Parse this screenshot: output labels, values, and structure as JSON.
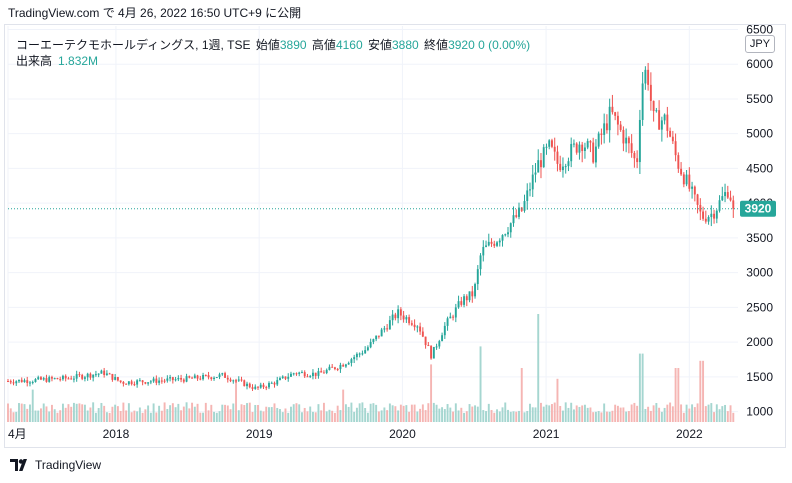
{
  "header": {
    "text": "TradingView.com で 4月 26, 2022 16:50 UTC+9 に公開"
  },
  "legend": {
    "symbol": "コーエーテクモホールディングス, 1週, TSE",
    "open_label": "始値",
    "open": "3890",
    "high_label": "高値",
    "high": "4160",
    "low_label": "安値",
    "low": "3880",
    "close_label": "終値",
    "close": "3920",
    "change": "0 (0.00%)",
    "volume_label": "出来高",
    "volume": "1.832M"
  },
  "currency": "JPY",
  "last_price_label": "3920",
  "footer": {
    "brand": "TradingView",
    "logo_icon": "tradingview-logo-icon"
  },
  "colors": {
    "up": "#26a69a",
    "down": "#ef5350",
    "up_volume": "#a5d6d0",
    "down_volume": "#f5b5b3",
    "grid": "#f0f3fa"
  },
  "chart_data": {
    "type": "candlestick",
    "interval": "1W",
    "y_ticks": [
      1000,
      1500,
      2000,
      2500,
      3000,
      3500,
      4000,
      4500,
      5000,
      5500,
      6000,
      6500
    ],
    "y_tick_labels": [
      "1000",
      "1500",
      "2000",
      "2500",
      "3000",
      "3500",
      "4000",
      "4500",
      "5000",
      "5500",
      "6000",
      "6500"
    ],
    "ylim": [
      850,
      6550
    ],
    "x_tick_labels": [
      "4月",
      "2018",
      "2019",
      "2020",
      "2021",
      "2022"
    ],
    "x_tick_dates": [
      "2017-04-01",
      "2018-01-01",
      "2019-01-01",
      "2020-01-01",
      "2021-01-01",
      "2022-01-01"
    ],
    "x_range": [
      "2017-04-01",
      "2022-05-05"
    ],
    "last_close": 3920,
    "price_path": [
      [
        "2017-04-01",
        1440
      ],
      [
        "2017-06-01",
        1450
      ],
      [
        "2017-09-01",
        1480
      ],
      [
        "2017-12-01",
        1560
      ],
      [
        "2018-01-15",
        1420
      ],
      [
        "2018-04-01",
        1440
      ],
      [
        "2018-07-01",
        1470
      ],
      [
        "2018-10-01",
        1520
      ],
      [
        "2018-12-25",
        1330
      ],
      [
        "2019-02-15",
        1430
      ],
      [
        "2019-04-01",
        1560
      ],
      [
        "2019-06-01",
        1540
      ],
      [
        "2019-08-01",
        1680
      ],
      [
        "2019-10-01",
        1900
      ],
      [
        "2019-12-20",
        2420
      ],
      [
        "2020-02-10",
        2250
      ],
      [
        "2020-03-15",
        1800
      ],
      [
        "2020-04-15",
        2200
      ],
      [
        "2020-06-01",
        2600
      ],
      [
        "2020-07-01",
        2700
      ],
      [
        "2020-07-20",
        3300
      ],
      [
        "2020-09-01",
        3500
      ],
      [
        "2020-11-01",
        3900
      ],
      [
        "2020-12-10",
        4550
      ],
      [
        "2021-01-10",
        4800
      ],
      [
        "2021-02-01",
        4550
      ],
      [
        "2021-04-01",
        4900
      ],
      [
        "2021-05-01",
        4700
      ],
      [
        "2021-06-15",
        5300
      ],
      [
        "2021-08-01",
        4800
      ],
      [
        "2021-08-20",
        4550
      ],
      [
        "2021-09-01",
        5700
      ],
      [
        "2021-09-15",
        5950
      ],
      [
        "2021-10-01",
        5200
      ],
      [
        "2021-11-01",
        5200
      ],
      [
        "2021-12-01",
        4600
      ],
      [
        "2022-01-10",
        4100
      ],
      [
        "2022-02-01",
        3800
      ],
      [
        "2022-03-01",
        3850
      ],
      [
        "2022-04-10",
        4200
      ],
      [
        "2022-04-26",
        3920
      ]
    ],
    "volume_spikes": [
      [
        "2017-06-01",
        0.9
      ],
      [
        "2018-11-01",
        1.2
      ],
      [
        "2019-08-01",
        0.9
      ],
      [
        "2020-03-15",
        1.6
      ],
      [
        "2020-07-20",
        2.1
      ],
      [
        "2020-11-01",
        1.5
      ],
      [
        "2020-12-10",
        3.0
      ],
      [
        "2021-02-01",
        1.2
      ],
      [
        "2021-09-01",
        1.9
      ],
      [
        "2021-12-01",
        1.5
      ],
      [
        "2022-02-01",
        1.7
      ]
    ]
  }
}
